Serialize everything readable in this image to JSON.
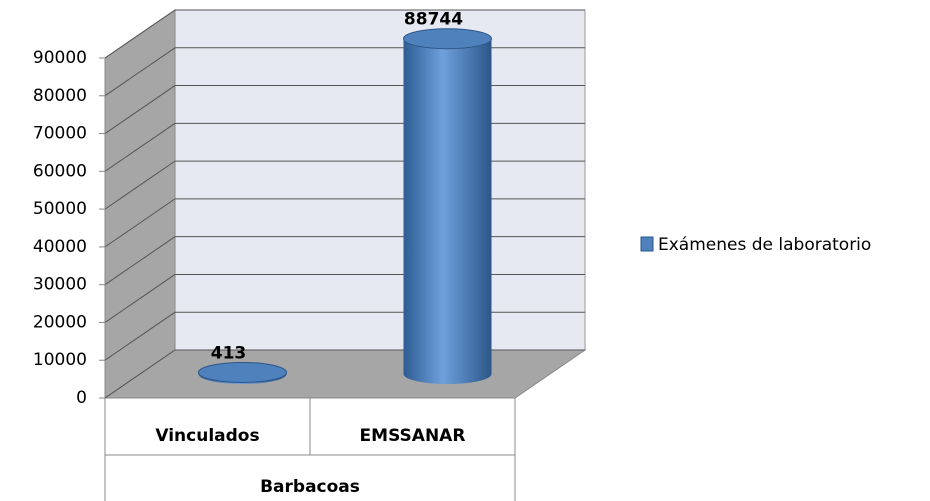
{
  "chart_data": {
    "type": "bar3d",
    "categories": [
      "Vinculados",
      "EMSSANAR"
    ],
    "category_group": "Barbacoas",
    "series": [
      {
        "name": "Exámenes de laboratorio",
        "color": "#4f81bd",
        "values": [
          413,
          88744
        ]
      }
    ],
    "ylim": [
      0,
      90000
    ],
    "yticks": [
      0,
      10000,
      20000,
      30000,
      40000,
      50000,
      60000,
      70000,
      80000,
      90000
    ],
    "grid": true,
    "legend": "right"
  }
}
